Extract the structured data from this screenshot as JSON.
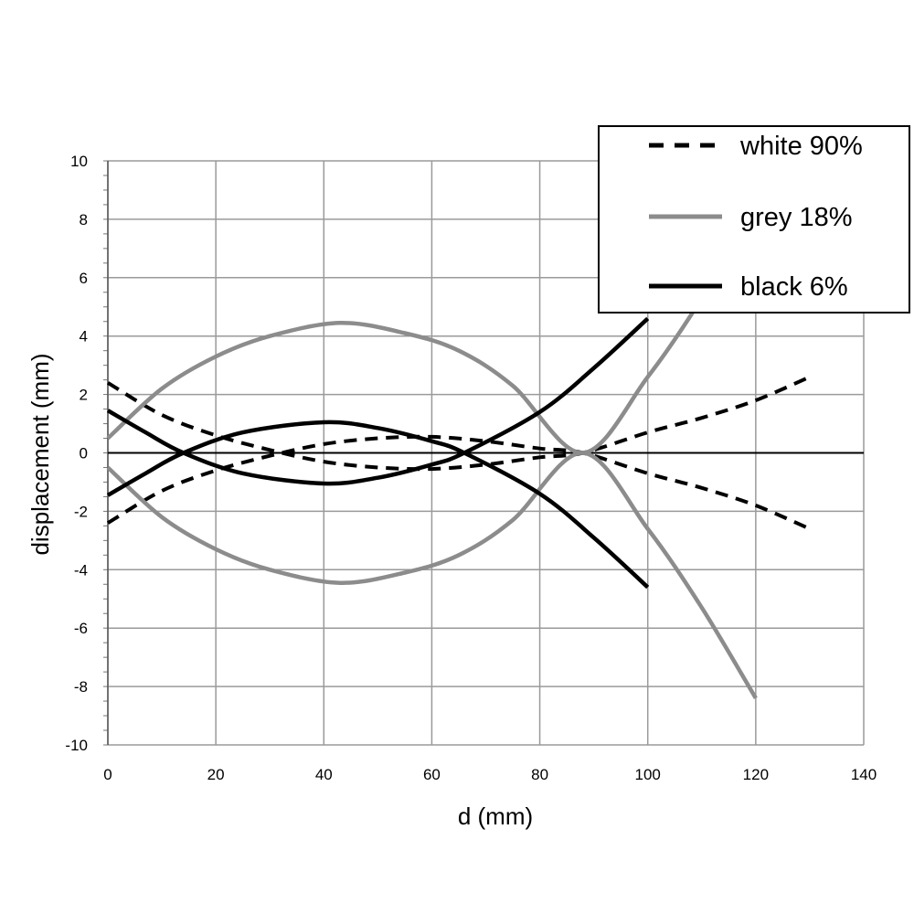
{
  "chart_data": {
    "type": "line",
    "title": "",
    "xlabel": "d (mm)",
    "ylabel": "displacement (mm)",
    "xlim": [
      0,
      140
    ],
    "ylim": [
      -10,
      10
    ],
    "x_ticks": [
      0,
      20,
      40,
      60,
      80,
      100,
      120,
      140
    ],
    "y_ticks": [
      -10,
      -8,
      -6,
      -4,
      -2,
      0,
      2,
      4,
      6,
      8,
      10
    ],
    "grid": true,
    "legend_position": "top-right",
    "series": [
      {
        "name": "white 90%",
        "color": "#000000",
        "style": "dashed",
        "x": [
          0,
          10,
          20,
          30,
          40,
          50,
          60,
          70,
          80,
          88,
          100,
          110,
          120,
          130
        ],
        "y": [
          2.4,
          1.3,
          0.6,
          0.1,
          -0.3,
          -0.5,
          -0.55,
          -0.4,
          -0.15,
          0.0,
          0.7,
          1.2,
          1.8,
          2.6
        ]
      },
      {
        "name": "white 90%",
        "color": "#000000",
        "style": "dashed",
        "x": [
          0,
          10,
          20,
          30,
          40,
          50,
          60,
          70,
          80,
          88,
          100,
          110,
          120,
          130
        ],
        "y": [
          -2.4,
          -1.3,
          -0.6,
          -0.1,
          0.3,
          0.5,
          0.55,
          0.4,
          0.15,
          0.0,
          -0.7,
          -1.2,
          -1.8,
          -2.6
        ]
      },
      {
        "name": "grey 18%",
        "color": "#8c8c8c",
        "style": "solid",
        "x": [
          0,
          10,
          20,
          30,
          43,
          55,
          65,
          75,
          88,
          100,
          110,
          120
        ],
        "y": [
          0.5,
          2.2,
          3.3,
          4.0,
          4.45,
          4.1,
          3.5,
          2.3,
          0.0,
          2.6,
          5.3,
          8.5
        ]
      },
      {
        "name": "grey 18%",
        "color": "#8c8c8c",
        "style": "solid",
        "x": [
          0,
          10,
          20,
          30,
          43,
          55,
          65,
          75,
          88,
          100,
          110,
          120
        ],
        "y": [
          -0.5,
          -2.2,
          -3.3,
          -4.0,
          -4.45,
          -4.1,
          -3.5,
          -2.3,
          0.0,
          -2.6,
          -5.3,
          -8.4
        ]
      },
      {
        "name": "black 6%",
        "color": "#000000",
        "style": "solid",
        "x": [
          0,
          7,
          14,
          25,
          40,
          50,
          60,
          66,
          80,
          90,
          100
        ],
        "y": [
          1.45,
          0.7,
          0.0,
          -0.7,
          -1.05,
          -0.85,
          -0.4,
          0.0,
          1.4,
          2.9,
          4.6
        ]
      },
      {
        "name": "black 6%",
        "color": "#000000",
        "style": "solid",
        "x": [
          0,
          7,
          14,
          25,
          40,
          50,
          60,
          66,
          80,
          90,
          100
        ],
        "y": [
          -1.45,
          -0.7,
          0.0,
          0.7,
          1.05,
          0.85,
          0.4,
          0.0,
          -1.4,
          -2.9,
          -4.6
        ]
      }
    ],
    "legend": [
      {
        "label": "white 90%",
        "color": "#000000",
        "style": "dashed"
      },
      {
        "label": "grey 18%",
        "color": "#8c8c8c",
        "style": "solid"
      },
      {
        "label": "black 6%",
        "color": "#000000",
        "style": "solid"
      }
    ]
  }
}
